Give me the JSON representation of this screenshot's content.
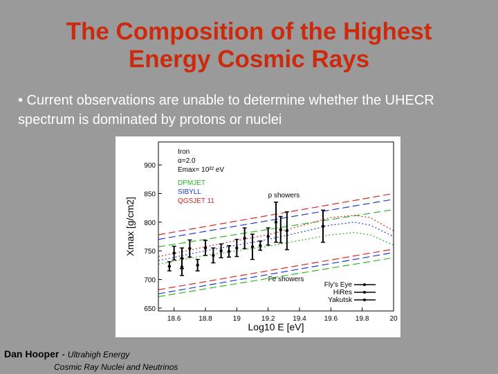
{
  "slide": {
    "title_line1": "The Composition of the Highest",
    "title_line2": "Energy Cosmic Rays",
    "bullet": "• Current observations are unable to determine whether the UHECR spectrum is dominated by protons or nuclei",
    "footer_name": "Dan Hooper",
    "footer_sep": " - ",
    "footer_line1": "Ultrahigh Energy",
    "footer_line2": "Cosmic Ray Nuclei and Neutrinos"
  },
  "colors": {
    "dpmjet": "#22bb22",
    "sibyll": "#2233dd",
    "qgsjet": "#dd2222"
  },
  "chart_data": {
    "type": "scatter",
    "xlabel": "Log10 E [eV]",
    "ylabel": "Xmax [g/cm2]",
    "xlim": [
      18.5,
      20.0
    ],
    "ylim": [
      645,
      940
    ],
    "xticks": [
      18.6,
      18.8,
      19,
      19.2,
      19.4,
      19.6,
      19.8,
      20
    ],
    "xtick_labels": [
      "18.6",
      "18.8",
      "19",
      "19.2",
      "19.4",
      "19.6",
      "19.8",
      "20"
    ],
    "yticks": [
      650,
      700,
      750,
      800,
      850,
      900
    ],
    "ytick_labels": [
      "650",
      "700",
      "750",
      "800",
      "850",
      "900"
    ],
    "legend_top": [
      "Iron",
      "α=2.0",
      "Emax= 10²² eV"
    ],
    "legend_models": [
      {
        "name": "DPMJET",
        "color": "#22bb22"
      },
      {
        "name": "SIBYLL",
        "color": "#2233dd"
      },
      {
        "name": "QGSJET 11",
        "color": "#dd2222"
      }
    ],
    "annotations": [
      {
        "text": "p showers",
        "x": 19.2,
        "y": 843
      },
      {
        "text": "Fe showers",
        "x": 19.2,
        "y": 697
      }
    ],
    "legend_experiments": [
      "Fly's Eye",
      "HiRes",
      "Yakutsk"
    ],
    "model_lines": [
      {
        "name": "QGSJET 11 p",
        "color": "#dd2222",
        "dash": "10,5",
        "x": [
          18.5,
          20.0
        ],
        "y": [
          778,
          850
        ]
      },
      {
        "name": "SIBYLL p",
        "color": "#2233dd",
        "dash": "10,5",
        "x": [
          18.5,
          20.0
        ],
        "y": [
          770,
          840
        ]
      },
      {
        "name": "DPMJET p",
        "color": "#22bb22",
        "dash": "10,5",
        "x": [
          18.5,
          20.0
        ],
        "y": [
          757,
          822
        ]
      },
      {
        "name": "QGSJET 11 Fe",
        "color": "#dd2222",
        "dash": "10,5",
        "x": [
          18.5,
          20.0
        ],
        "y": [
          682,
          753
        ]
      },
      {
        "name": "SIBYLL Fe",
        "color": "#2233dd",
        "dash": "10,5",
        "x": [
          18.5,
          20.0
        ],
        "y": [
          675,
          747
        ]
      },
      {
        "name": "DPMJET Fe",
        "color": "#22bb22",
        "dash": "10,5",
        "x": [
          18.5,
          20.0
        ],
        "y": [
          670,
          738
        ]
      },
      {
        "name": "QGSJET 11 mix",
        "color": "#dd2222",
        "dash": "2,3",
        "x": [
          18.5,
          18.8,
          19.0,
          19.2,
          19.4,
          19.6,
          19.75,
          19.85,
          20.0
        ],
        "y": [
          740,
          757,
          768,
          778,
          793,
          808,
          812,
          808,
          785
        ]
      },
      {
        "name": "SIBYLL mix",
        "color": "#2233dd",
        "dash": "2,3",
        "x": [
          18.5,
          18.8,
          19.0,
          19.2,
          19.4,
          19.6,
          19.75,
          19.85,
          20.0
        ],
        "y": [
          733,
          750,
          760,
          770,
          782,
          795,
          800,
          795,
          775
        ]
      },
      {
        "name": "DPMJET mix",
        "color": "#22bb22",
        "dash": "2,3",
        "x": [
          18.5,
          18.8,
          19.0,
          19.2,
          19.4,
          19.6,
          19.75,
          19.85,
          20.0
        ],
        "y": [
          727,
          742,
          750,
          758,
          768,
          778,
          782,
          778,
          760
        ]
      }
    ],
    "data_points": [
      {
        "x": 18.57,
        "y": 723,
        "err": 8
      },
      {
        "x": 18.6,
        "y": 746,
        "err": 12
      },
      {
        "x": 18.65,
        "y": 737,
        "err": 18
      },
      {
        "x": 18.65,
        "y": 722,
        "err": 15
      },
      {
        "x": 18.7,
        "y": 754,
        "err": 15
      },
      {
        "x": 18.75,
        "y": 725,
        "err": 10
      },
      {
        "x": 18.8,
        "y": 755,
        "err": 13
      },
      {
        "x": 18.85,
        "y": 742,
        "err": 13
      },
      {
        "x": 18.9,
        "y": 750,
        "err": 12
      },
      {
        "x": 18.95,
        "y": 749,
        "err": 10
      },
      {
        "x": 19.0,
        "y": 755,
        "err": 15
      },
      {
        "x": 19.05,
        "y": 772,
        "err": 18
      },
      {
        "x": 19.1,
        "y": 757,
        "err": 22
      },
      {
        "x": 19.15,
        "y": 759,
        "err": 8
      },
      {
        "x": 19.2,
        "y": 775,
        "err": 15
      },
      {
        "x": 19.25,
        "y": 800,
        "err": 35
      },
      {
        "x": 19.28,
        "y": 787,
        "err": 23
      },
      {
        "x": 19.32,
        "y": 785,
        "err": 33
      },
      {
        "x": 19.55,
        "y": 793,
        "err": 28
      }
    ]
  }
}
